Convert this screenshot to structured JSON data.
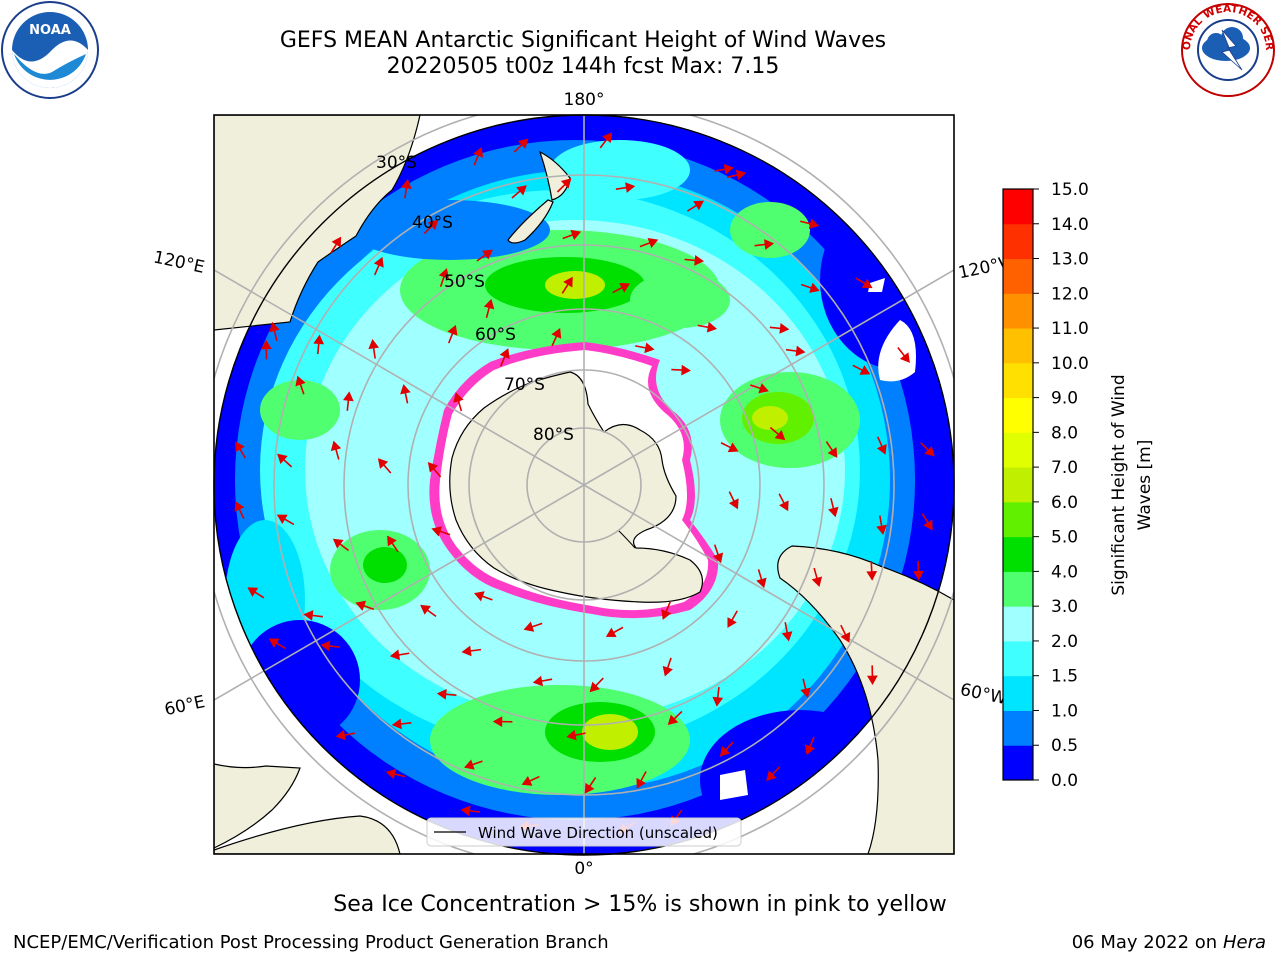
{
  "title_line1": "GEFS MEAN Antarctic Significant Height of Wind Waves",
  "title_line2": "20220505 t00z 144h fcst   Max: 7.15",
  "lon_labels": {
    "top": "180°",
    "bottom": "0°",
    "left_upper": "120°E",
    "right_upper": "120°W",
    "left_lower": "60°E",
    "right_lower": "60°W"
  },
  "lat_labels": [
    "30°S",
    "40°S",
    "50°S",
    "60°S",
    "70°S",
    "80°S"
  ],
  "legend_text": "Wind Wave Direction (unscaled)",
  "colorbar": {
    "label": "Significant Height of Wind Waves [m]",
    "label_line1": "Significant Height of Wind",
    "label_line2": "Waves [m]",
    "ticks": [
      "0.0",
      "0.5",
      "1.0",
      "1.5",
      "2.0",
      "3.0",
      "4.0",
      "5.0",
      "6.0",
      "7.0",
      "8.0",
      "9.0",
      "10.0",
      "11.0",
      "12.0",
      "13.0",
      "14.0",
      "15.0"
    ],
    "colors": [
      "#0000ff",
      "#0080ff",
      "#00e5ff",
      "#40ffff",
      "#a0ffff",
      "#50ff70",
      "#00e000",
      "#60f000",
      "#c0f000",
      "#e0ff00",
      "#ffff00",
      "#ffe000",
      "#ffc000",
      "#ff9000",
      "#ff6000",
      "#ff3000",
      "#ff0000"
    ]
  },
  "footnote": "Sea Ice Concentration > 15% is shown in pink to yellow",
  "credit": "NCEP/EMC/Verification Post Processing Product Generation Branch",
  "date": "06 May 2022 on",
  "machine": "Hera",
  "noaa_logo_text": "NOAA",
  "nws_logo_text": "NATIONAL WEATHER SERVICE"
}
